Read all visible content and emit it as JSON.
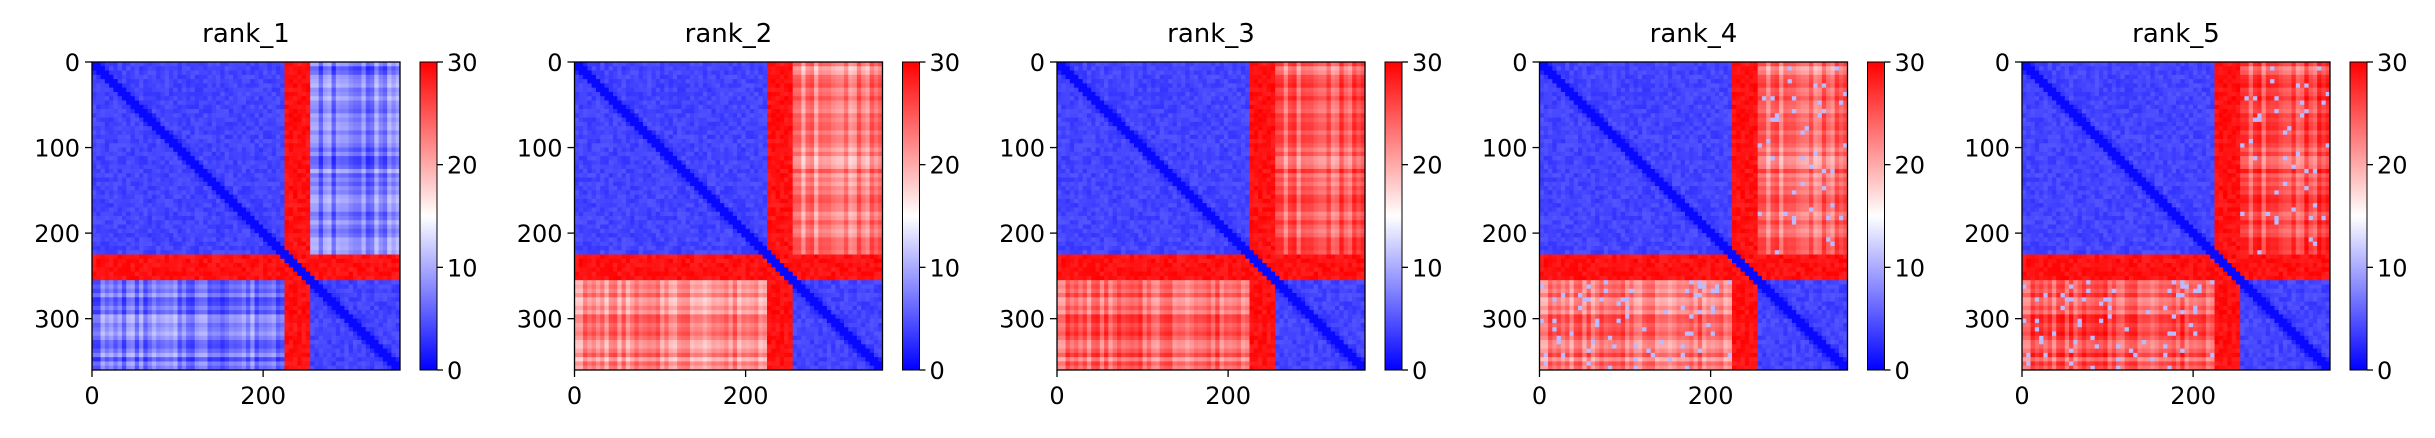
{
  "figure": {
    "colormap": "bwr",
    "colors": {
      "low": "#0000ff",
      "mid": "#ffffff",
      "high": "#ff0000",
      "axis": "#000000"
    }
  },
  "chart_data": [
    {
      "type": "heatmap",
      "title": "rank_1",
      "xlim": [
        0,
        360
      ],
      "ylim": [
        360,
        0
      ],
      "xticks": [
        0,
        200
      ],
      "yticks": [
        0,
        100,
        200,
        300
      ],
      "colorbar": {
        "min": 0,
        "max": 30,
        "ticks": [
          0,
          10,
          20,
          30
        ]
      },
      "domains": [
        {
          "start": 0,
          "end": 225,
          "within_value": 3
        },
        {
          "start": 255,
          "end": 360,
          "within_value": 3
        }
      ],
      "between_domains_value": 7,
      "between_domains_pattern": "mostly low, striped"
    },
    {
      "type": "heatmap",
      "title": "rank_2",
      "xlim": [
        0,
        360
      ],
      "ylim": [
        360,
        0
      ],
      "xticks": [
        0,
        200
      ],
      "yticks": [
        0,
        100,
        200,
        300
      ],
      "colorbar": {
        "min": 0,
        "max": 30,
        "ticks": [
          0,
          10,
          20,
          30
        ]
      },
      "domains": [
        {
          "start": 0,
          "end": 225,
          "within_value": 3
        },
        {
          "start": 255,
          "end": 360,
          "within_value": 3
        }
      ],
      "between_domains_value": 22,
      "between_domains_pattern": "high, striped"
    },
    {
      "type": "heatmap",
      "title": "rank_3",
      "xlim": [
        0,
        360
      ],
      "ylim": [
        360,
        0
      ],
      "xticks": [
        0,
        200
      ],
      "yticks": [
        0,
        100,
        200,
        300
      ],
      "colorbar": {
        "min": 0,
        "max": 30,
        "ticks": [
          0,
          10,
          20,
          30
        ]
      },
      "domains": [
        {
          "start": 0,
          "end": 225,
          "within_value": 3
        },
        {
          "start": 255,
          "end": 360,
          "within_value": 3
        }
      ],
      "between_domains_value": 24,
      "between_domains_pattern": "high, striped"
    },
    {
      "type": "heatmap",
      "title": "rank_4",
      "xlim": [
        0,
        360
      ],
      "ylim": [
        360,
        0
      ],
      "xticks": [
        0,
        200
      ],
      "yticks": [
        0,
        100,
        200,
        300
      ],
      "colorbar": {
        "min": 0,
        "max": 30,
        "ticks": [
          0,
          10,
          20,
          30
        ]
      },
      "domains": [
        {
          "start": 0,
          "end": 225,
          "within_value": 3
        },
        {
          "start": 255,
          "end": 360,
          "within_value": 3
        }
      ],
      "between_domains_value": 23,
      "between_domains_pattern": "high with spotted low patches"
    },
    {
      "type": "heatmap",
      "title": "rank_5",
      "xlim": [
        0,
        360
      ],
      "ylim": [
        360,
        0
      ],
      "xticks": [
        0,
        200
      ],
      "yticks": [
        0,
        100,
        200,
        300
      ],
      "colorbar": {
        "min": 0,
        "max": 30,
        "ticks": [
          0,
          10,
          20,
          30
        ]
      },
      "domains": [
        {
          "start": 0,
          "end": 225,
          "within_value": 3
        },
        {
          "start": 255,
          "end": 360,
          "within_value": 3
        }
      ],
      "between_domains_value": 25,
      "between_domains_pattern": "high with few spotted low patches"
    }
  ]
}
